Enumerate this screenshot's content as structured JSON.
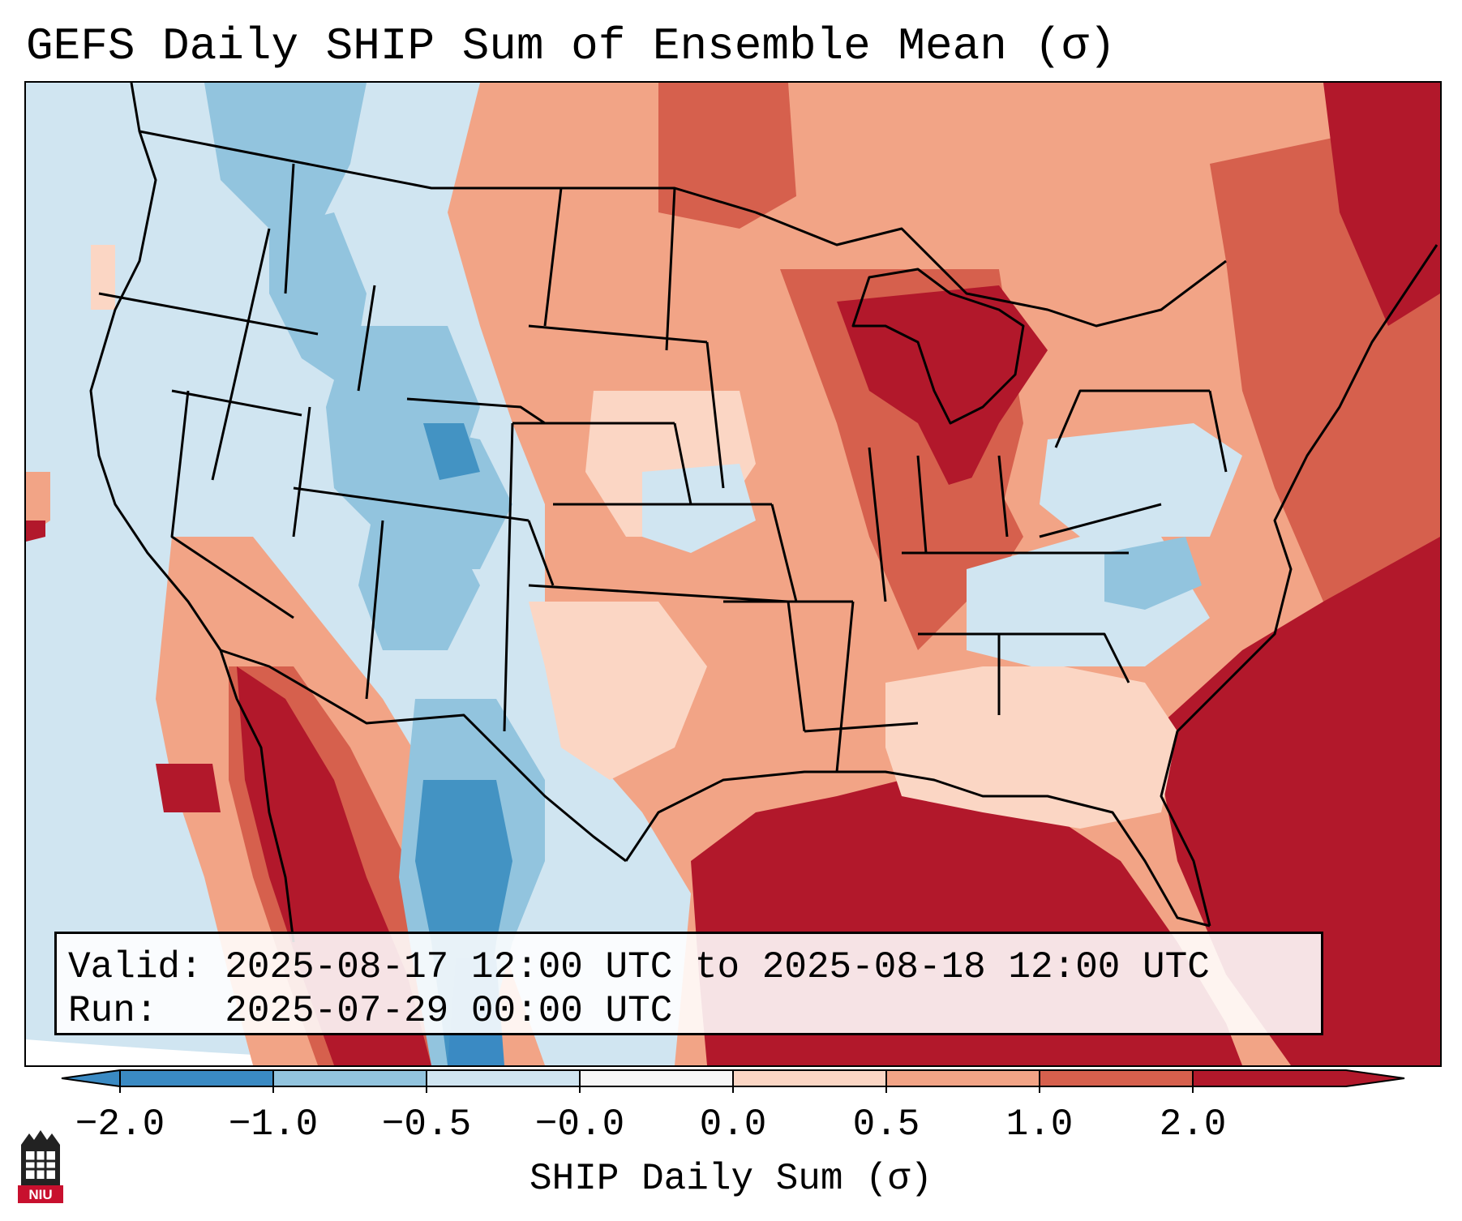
{
  "title": "GEFS Daily SHIP Sum of Ensemble Mean (σ)",
  "info": {
    "valid_line": "Valid: 2025-08-17 12:00 UTC to 2025-08-18 12:00 UTC",
    "run_line": "Run:   2025-07-29 00:00 UTC"
  },
  "colorbar": {
    "label": "SHIP Daily Sum (σ)",
    "ticks": [
      "−2.0",
      "−1.0",
      "−0.5",
      "−0.0",
      "0.0",
      "0.5",
      "1.0",
      "2.0"
    ],
    "colors": [
      "#3a8ac3",
      "#92c4de",
      "#d0e5f1",
      "#f7f7f7",
      "#fbd6c4",
      "#f2a486",
      "#d6604d",
      "#b2182b"
    ],
    "extend": "both"
  },
  "logo": {
    "text": "NIU",
    "color": "#c8102e"
  }
}
